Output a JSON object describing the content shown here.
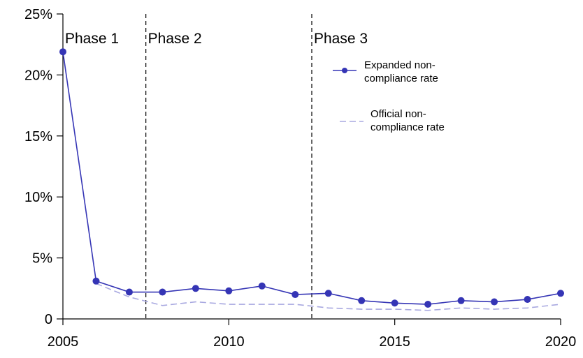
{
  "chart_data": {
    "type": "line",
    "x": [
      2005,
      2006,
      2007,
      2008,
      2009,
      2010,
      2011,
      2012,
      2013,
      2014,
      2015,
      2016,
      2017,
      2018,
      2019,
      2020
    ],
    "series": [
      {
        "name": "Expanded non-compliance rate",
        "values": [
          21.9,
          3.1,
          2.2,
          2.2,
          2.5,
          2.3,
          2.7,
          2.0,
          2.1,
          1.5,
          1.3,
          1.2,
          1.5,
          1.4,
          1.6,
          2.1
        ],
        "color": "#3535b5",
        "style": "solid-with-markers"
      },
      {
        "name": "Official non-compliance rate",
        "values": [
          null,
          2.9,
          1.8,
          1.1,
          1.4,
          1.2,
          1.2,
          1.2,
          0.9,
          0.8,
          0.8,
          0.7,
          0.9,
          0.8,
          0.9,
          1.2
        ],
        "color": "#a8a8e0",
        "style": "dashed"
      }
    ],
    "xlim": [
      2005,
      2020
    ],
    "ylim": [
      0,
      25
    ],
    "yticks": [
      0,
      5,
      10,
      15,
      20,
      25
    ],
    "ytick_labels": [
      "0",
      "5%",
      "10%",
      "15%",
      "20%",
      "25%"
    ],
    "xticks": [
      2005,
      2010,
      2015,
      2020
    ],
    "xtick_labels": [
      "2005",
      "2010",
      "2015",
      "2020"
    ],
    "vlines": [
      2007.5,
      2012.5
    ],
    "phases": [
      {
        "label": "Phase 1",
        "x": 2005
      },
      {
        "label": "Phase 2",
        "x": 2007.5
      },
      {
        "label": "Phase 3",
        "x": 2012.5
      }
    ],
    "legend": {
      "placement": "top-right",
      "items": [
        {
          "lines": [
            "Expanded non-",
            "compliance rate"
          ]
        },
        {
          "lines": [
            "Official non-",
            "compliance rate"
          ]
        }
      ]
    },
    "grid": false
  }
}
